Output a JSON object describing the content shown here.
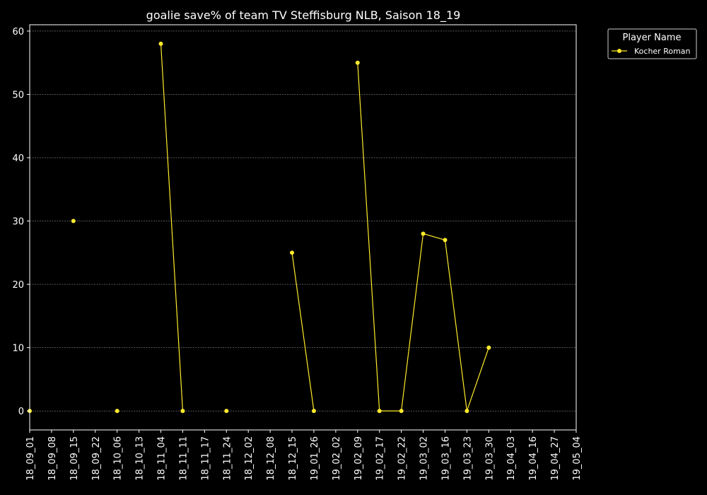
{
  "chart_data": {
    "type": "line",
    "title": "goalie save% of team TV Steffisburg NLB, Saison 18_19",
    "xlabel": "",
    "ylabel": "",
    "categories": [
      "18_09_01",
      "18_09_08",
      "18_09_15",
      "18_09_22",
      "18_10_06",
      "18_10_13",
      "18_11_04",
      "18_11_11",
      "18_11_17",
      "18_11_24",
      "18_12_02",
      "18_12_08",
      "18_12_15",
      "19_01_26",
      "19_02_02",
      "19_02_09",
      "19_02_17",
      "19_02_22",
      "19_03_02",
      "19_03_16",
      "19_03_23",
      "19_03_30",
      "19_04_03",
      "19_04_16",
      "19_04_27",
      "19_05_04"
    ],
    "ylim": [
      -3,
      61
    ],
    "yticks": [
      0,
      10,
      20,
      30,
      40,
      50,
      60
    ],
    "grid": "horizontal, dashed",
    "legend": {
      "title": "Player Name",
      "position": "outside top-right"
    },
    "series": [
      {
        "name": "Kocher Roman",
        "color": "#ffea2b",
        "values": [
          0,
          null,
          30,
          null,
          0,
          null,
          58,
          0,
          null,
          0,
          null,
          null,
          25,
          0,
          null,
          55,
          0,
          0,
          28,
          27,
          0,
          10,
          null,
          null,
          null,
          null
        ]
      }
    ]
  }
}
